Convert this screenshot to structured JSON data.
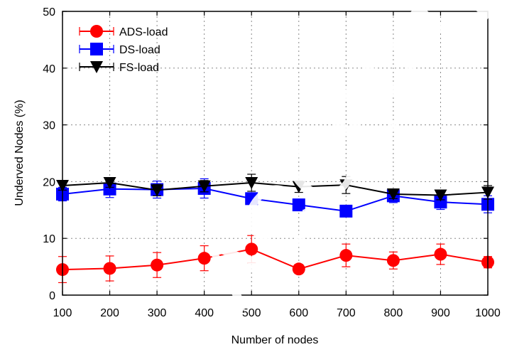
{
  "chart_data": {
    "type": "line",
    "title": "",
    "xlabel": "Number of nodes",
    "ylabel": "Underved Nodes (%)",
    "x": [
      100,
      200,
      300,
      400,
      500,
      600,
      700,
      800,
      900,
      1000
    ],
    "xlim": [
      100,
      1000
    ],
    "ylim": [
      0,
      50
    ],
    "yticks": [
      0,
      10,
      20,
      30,
      40,
      50
    ],
    "grid": true,
    "legend_position": "top-left",
    "series": [
      {
        "name": "ADS-load",
        "color": "#ff0000",
        "marker": "circle",
        "values": [
          4.5,
          4.7,
          5.3,
          6.5,
          8.1,
          4.6,
          7.0,
          6.1,
          7.2,
          5.8
        ],
        "errors": [
          2.3,
          2.2,
          2.2,
          2.2,
          2.4,
          0.8,
          2.0,
          1.5,
          1.8,
          1.0
        ]
      },
      {
        "name": "DS-load",
        "color": "#0000ff",
        "marker": "square",
        "values": [
          17.8,
          18.7,
          18.6,
          18.8,
          17.0,
          15.9,
          14.8,
          17.5,
          16.4,
          16.0
        ],
        "errors": [
          1.2,
          1.5,
          1.5,
          1.7,
          1.0,
          1.0,
          0.6,
          1.2,
          1.3,
          1.5
        ]
      },
      {
        "name": "FS-load",
        "color": "#000000",
        "marker": "triangle-down",
        "values": [
          19.3,
          19.8,
          18.5,
          19.2,
          19.8,
          19.1,
          19.4,
          17.8,
          17.6,
          18.1
        ],
        "errors": [
          0.8,
          0.8,
          1.0,
          1.0,
          1.5,
          1.0,
          1.5,
          0.8,
          0.8,
          1.2
        ]
      }
    ]
  },
  "watermark": "ACCEPTED MANUSCRIPT"
}
